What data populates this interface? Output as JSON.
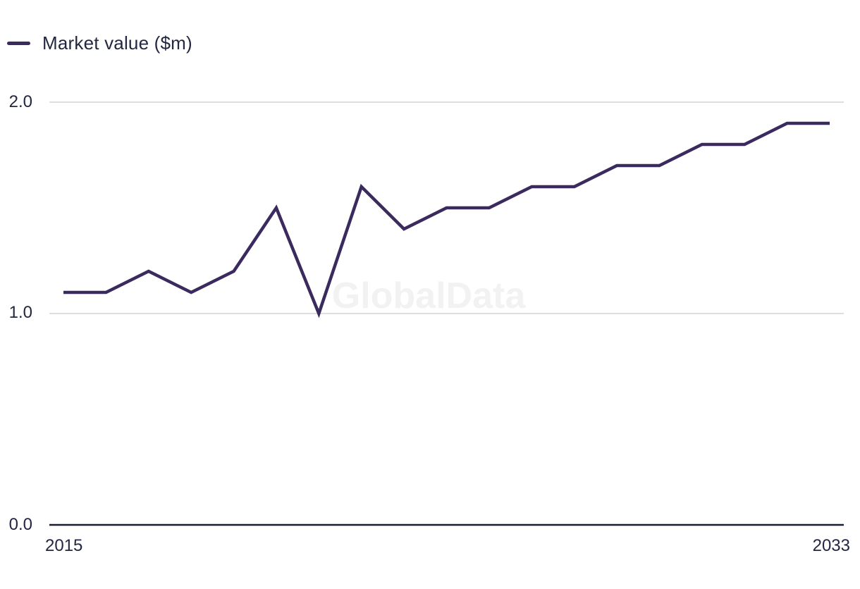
{
  "legend": {
    "label": "Market value ($m)"
  },
  "watermark": "GlobalData",
  "colors": {
    "line": "#3b2a5e",
    "grid": "#dedede",
    "axis": "#1a1e32",
    "text": "#232740",
    "watermark_fill": "#f2f2f2",
    "background": "#ffffff"
  },
  "chart_data": {
    "type": "line",
    "title": "",
    "xlabel": "",
    "ylabel": "",
    "x": [
      2015,
      2016,
      2017,
      2018,
      2019,
      2020,
      2021,
      2022,
      2023,
      2024,
      2025,
      2026,
      2027,
      2028,
      2029,
      2030,
      2031,
      2032,
      2033
    ],
    "series": [
      {
        "name": "Market value ($m)",
        "values": [
          1.1,
          1.1,
          1.2,
          1.1,
          1.2,
          1.5,
          1.0,
          1.6,
          1.4,
          1.5,
          1.5,
          1.6,
          1.6,
          1.7,
          1.7,
          1.8,
          1.8,
          1.9,
          1.9
        ]
      }
    ],
    "ylim": [
      0,
      2
    ],
    "yticks": [
      0,
      1,
      2
    ],
    "ytick_labels": [
      "0.0",
      "1.0",
      "2.0"
    ],
    "xtick_labels": [
      "2015",
      "2033"
    ],
    "grid": "horizontal",
    "legend_position": "top-left"
  }
}
